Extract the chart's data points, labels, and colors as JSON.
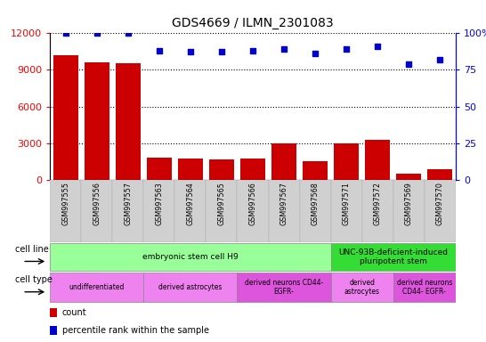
{
  "title": "GDS4669 / ILMN_2301083",
  "samples": [
    "GSM997555",
    "GSM997556",
    "GSM997557",
    "GSM997563",
    "GSM997564",
    "GSM997565",
    "GSM997566",
    "GSM997567",
    "GSM997568",
    "GSM997571",
    "GSM997572",
    "GSM997569",
    "GSM997570"
  ],
  "counts": [
    10200,
    9600,
    9500,
    1800,
    1750,
    1650,
    1750,
    3000,
    1500,
    3000,
    3300,
    500,
    900
  ],
  "percentiles": [
    100,
    100,
    100,
    88,
    87,
    87,
    88,
    89,
    86,
    89,
    91,
    79,
    82
  ],
  "ylim_left": [
    0,
    12000
  ],
  "ylim_right": [
    0,
    100
  ],
  "yticks_left": [
    0,
    3000,
    6000,
    9000,
    12000
  ],
  "yticks_right": [
    0,
    25,
    50,
    75,
    100
  ],
  "bar_color": "#cc0000",
  "dot_color": "#0000cc",
  "cell_line_groups": [
    {
      "label": "embryonic stem cell H9",
      "start": 0,
      "end": 9,
      "color": "#99ff99"
    },
    {
      "label": "UNC-93B-deficient-induced\npluripotent stem",
      "start": 9,
      "end": 13,
      "color": "#33dd33"
    }
  ],
  "cell_type_groups": [
    {
      "label": "undifferentiated",
      "start": 0,
      "end": 3,
      "color": "#ee82ee"
    },
    {
      "label": "derived astrocytes",
      "start": 3,
      "end": 6,
      "color": "#ee82ee"
    },
    {
      "label": "derived neurons CD44-\nEGFR-",
      "start": 6,
      "end": 9,
      "color": "#dd55dd"
    },
    {
      "label": "derived\nastrocytes",
      "start": 9,
      "end": 11,
      "color": "#ee82ee"
    },
    {
      "label": "derived neurons\nCD44- EGFR-",
      "start": 11,
      "end": 13,
      "color": "#dd55dd"
    }
  ],
  "xtick_bg": "#d0d0d0",
  "legend_count_color": "#cc0000",
  "legend_dot_color": "#0000cc"
}
